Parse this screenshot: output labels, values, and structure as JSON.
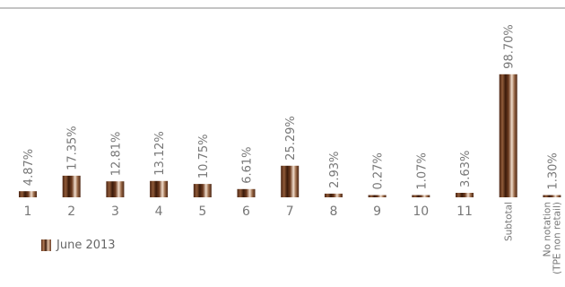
{
  "chart_data": {
    "type": "bar",
    "categories": [
      "1",
      "2",
      "3",
      "4",
      "5",
      "6",
      "7",
      "8",
      "9",
      "10",
      "11",
      "Subtotal",
      "No notation (TPE non retail)"
    ],
    "category_lines": [
      [
        "1"
      ],
      [
        "2"
      ],
      [
        "3"
      ],
      [
        "4"
      ],
      [
        "5"
      ],
      [
        "6"
      ],
      [
        "7"
      ],
      [
        "8"
      ],
      [
        "9"
      ],
      [
        "10"
      ],
      [
        "11"
      ],
      [
        "Subtotal"
      ],
      [
        "No notation",
        "(TPE non retail)"
      ]
    ],
    "series": [
      {
        "name": "June 2013",
        "values": [
          4.87,
          17.35,
          12.81,
          13.12,
          10.75,
          6.61,
          25.29,
          2.93,
          0.27,
          1.07,
          3.63,
          98.7,
          1.3
        ],
        "labels": [
          "4.87%",
          "17.35%",
          "12.81%",
          "13.12%",
          "10.75%",
          "6.61%",
          "25.29%",
          "2.93%",
          "0.27%",
          "1.07%",
          "3.63%",
          "98.70%",
          "1.30%"
        ]
      }
    ],
    "title": "",
    "xlabel": "",
    "ylabel": "",
    "ylim": [
      0,
      100
    ],
    "grid": false,
    "legend_position": "bottom-left",
    "bar_color": "#6b3a20"
  }
}
